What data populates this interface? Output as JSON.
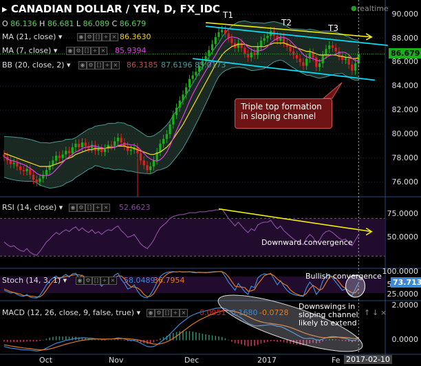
{
  "header": {
    "symbol_title": "CANADIAN DOLLAR / YEN, D, FX_IDC",
    "realtime": "realtime",
    "ohlc": {
      "o_label": "O",
      "o": "86.136",
      "h_label": "H",
      "h": "86.681",
      "l_label": "L",
      "l": "86.089",
      "c_label": "C",
      "c": "86.679"
    }
  },
  "indicators": {
    "ma21": {
      "label": "MA (21, close)",
      "value": "86.3630",
      "color": "#f0d020"
    },
    "ma7": {
      "label": "MA (7, close)",
      "value": "85.9394",
      "color": "#e040e0"
    },
    "bb": {
      "label": "BB (20, close, 2)",
      "v1": "86.3185",
      "v2": "87.6196",
      "v3": "85.0173"
    },
    "rsi": {
      "label": "RSI (14, close)",
      "value": "52.6623"
    },
    "stoch": {
      "label": "Stoch (14, 3, 1)",
      "k": "58.0489",
      "d": "36.7954"
    },
    "macd": {
      "label": "MACD (12, 26, close, 9, false, true)",
      "v1": "0.0951",
      "v2": "0.1680",
      "v3": "-0.0728"
    }
  },
  "annotations": {
    "t1": "T1",
    "t2": "T2",
    "t3": "T3",
    "callout_line1": "Triple top formation",
    "callout_line2": "in sloping channel",
    "rsi_note": "Downward convergence",
    "stoch_note": "Bullish convergence",
    "macd_note_1": "Downswings in",
    "macd_note_2": "sloping channel",
    "macd_note_3": "likely to extend"
  },
  "price_tags": {
    "last": "86.679",
    "stoch": "73.7133"
  },
  "colors": {
    "up": "#19b019",
    "down": "#e02020",
    "channel": "#00e0ff",
    "yellow": "#f0f000",
    "bb": "#4a9a98",
    "ma21": "#f0d020",
    "ma7": "#e040e0",
    "bg": "#000000"
  },
  "chart_data": {
    "type": "candlestick",
    "price_axis_ticks": [
      "90.000",
      "88.000",
      "86.000",
      "84.000",
      "82.000",
      "80.000",
      "78.000",
      "76.000"
    ],
    "rsi_axis_ticks": [
      "75.0000",
      "50.0000"
    ],
    "stoch_axis_ticks": [
      "100.0000",
      "50.0000",
      "25.0000"
    ],
    "macd_axis_ticks": [
      "2.0000",
      "0.0000"
    ],
    "x_ticks": [
      "Oct",
      "Nov",
      "Dec",
      "2017",
      "Fe",
      "2017-02-10"
    ],
    "price_ylim": [
      75,
      90.5
    ],
    "closes": [
      78.1,
      77.8,
      77.5,
      77.6,
      77.3,
      77.0,
      76.9,
      77.1,
      76.6,
      76.2,
      76.0,
      76.3,
      76.6,
      77.0,
      77.4,
      77.8,
      78.2,
      78.0,
      78.3,
      78.6,
      78.4,
      78.9,
      79.2,
      78.9,
      79.3,
      79.0,
      78.8,
      79.1,
      78.6,
      78.8,
      78.5,
      78.8,
      79.1,
      79.0,
      79.4,
      79.7,
      79.3,
      79.0,
      78.6,
      78.7,
      78.9,
      78.4,
      77.8,
      77.4,
      77.0,
      77.3,
      77.8,
      78.5,
      79.2,
      79.6,
      80.0,
      80.8,
      81.6,
      82.2,
      82.8,
      83.3,
      83.9,
      84.6,
      84.9,
      85.2,
      85.7,
      86.1,
      86.5,
      87.0,
      87.5,
      88.1,
      88.5,
      88.7,
      88.4,
      88.0,
      87.6,
      87.2,
      87.6,
      87.2,
      86.7,
      86.4,
      86.8,
      86.6,
      87.3,
      87.8,
      88.0,
      88.2,
      88.6,
      88.2,
      87.8,
      88.1,
      87.6,
      87.3,
      86.9,
      86.6,
      86.3,
      86.0,
      85.7,
      86.3,
      86.8,
      86.4,
      85.6,
      85.9,
      86.6,
      87.1,
      87.4,
      87.2,
      86.9,
      86.5,
      86.2,
      86.3,
      85.8,
      85.3,
      85.9,
      86.68
    ],
    "ma21": [
      78.4,
      78.3,
      78.2,
      78.1,
      78.0,
      77.9,
      77.8,
      77.7,
      77.6,
      77.5,
      77.4,
      77.3,
      77.3,
      77.3,
      77.3,
      77.4,
      77.5,
      77.6,
      77.7,
      77.9,
      78.0,
      78.1,
      78.3,
      78.4,
      78.5,
      78.6,
      78.7,
      78.7,
      78.8,
      78.8,
      78.8,
      78.8,
      78.9,
      78.9,
      78.9,
      79.0,
      79.0,
      79.0,
      78.9,
      78.9,
      78.8,
      78.7,
      78.6,
      78.5,
      78.4,
      78.3,
      78.3,
      78.4,
      78.5,
      78.7,
      78.9,
      79.2,
      79.6,
      80.0,
      80.4,
      80.8,
      81.3,
      81.8,
      82.3,
      82.8,
      83.3,
      83.8,
      84.3,
      84.8,
      85.3,
      85.8,
      86.2,
      86.6,
      86.9,
      87.1,
      87.3,
      87.4,
      87.5,
      87.5,
      87.5,
      87.4,
      87.3,
      87.3,
      87.3,
      87.3,
      87.3,
      87.4,
      87.5,
      87.6,
      87.6,
      87.6,
      87.6,
      87.5,
      87.4,
      87.3,
      87.2,
      87.1,
      87.0,
      86.9,
      86.9,
      86.8,
      86.7,
      86.6,
      86.6,
      86.6,
      86.6,
      86.6,
      86.6,
      86.5,
      86.5,
      86.4,
      86.4,
      86.3,
      86.3,
      86.36
    ],
    "rsi": [
      45,
      42,
      40,
      41,
      38,
      36,
      35,
      38,
      34,
      32,
      31,
      35,
      40,
      45,
      48,
      52,
      55,
      53,
      56,
      58,
      56,
      59,
      61,
      57,
      60,
      57,
      55,
      58,
      54,
      56,
      53,
      56,
      58,
      57,
      60,
      62,
      57,
      54,
      50,
      51,
      53,
      48,
      43,
      40,
      38,
      42,
      47,
      54,
      60,
      63,
      66,
      70,
      72,
      73,
      74,
      74,
      75,
      76,
      76,
      76,
      77,
      77,
      77,
      78,
      78,
      79,
      79,
      80,
      75,
      70,
      66,
      62,
      66,
      62,
      58,
      55,
      59,
      57,
      63,
      65,
      66,
      66,
      68,
      63,
      59,
      62,
      57,
      54,
      51,
      48,
      46,
      44,
      42,
      49,
      53,
      50,
      44,
      47,
      53,
      56,
      57,
      55,
      52,
      49,
      47,
      48,
      44,
      41,
      47,
      52.7
    ],
    "stoch_k": [
      30,
      25,
      20,
      22,
      15,
      10,
      8,
      15,
      5,
      3,
      2,
      12,
      30,
      50,
      65,
      75,
      82,
      70,
      80,
      88,
      78,
      90,
      92,
      75,
      85,
      70,
      60,
      72,
      50,
      58,
      45,
      62,
      75,
      70,
      85,
      92,
      70,
      55,
      35,
      40,
      50,
      28,
      12,
      5,
      3,
      15,
      35,
      60,
      80,
      90,
      95,
      97,
      98,
      97,
      98,
      96,
      97,
      98,
      95,
      94,
      96,
      95,
      94,
      96,
      97,
      98,
      98,
      97,
      80,
      60,
      45,
      30,
      55,
      40,
      25,
      15,
      45,
      40,
      75,
      85,
      90,
      88,
      92,
      70,
      50,
      65,
      45,
      30,
      20,
      15,
      12,
      10,
      8,
      40,
      60,
      45,
      15,
      30,
      65,
      80,
      88,
      75,
      60,
      45,
      30,
      35,
      18,
      10,
      35,
      58
    ],
    "stoch_d": [
      35,
      30,
      25,
      22,
      19,
      16,
      11,
      11,
      9,
      8,
      6,
      6,
      15,
      31,
      48,
      63,
      74,
      76,
      77,
      80,
      82,
      85,
      87,
      86,
      84,
      77,
      72,
      67,
      61,
      60,
      51,
      55,
      61,
      69,
      77,
      82,
      82,
      72,
      53,
      43,
      42,
      39,
      30,
      15,
      7,
      8,
      18,
      37,
      58,
      77,
      88,
      94,
      97,
      97,
      98,
      97,
      97,
      97,
      97,
      95,
      95,
      95,
      95,
      95,
      96,
      97,
      98,
      98,
      92,
      79,
      62,
      45,
      43,
      42,
      40,
      27,
      28,
      33,
      53,
      67,
      83,
      88,
      90,
      83,
      71,
      62,
      53,
      47,
      32,
      22,
      16,
      12,
      10,
      19,
      36,
      48,
      40,
      30,
      37,
      58,
      78,
      81,
      74,
      60,
      45,
      37,
      28,
      21,
      21,
      36.8
    ],
    "macd": [
      -0.4,
      -0.45,
      -0.5,
      -0.52,
      -0.55,
      -0.58,
      -0.6,
      -0.6,
      -0.62,
      -0.65,
      -0.67,
      -0.65,
      -0.6,
      -0.5,
      -0.4,
      -0.3,
      -0.2,
      -0.15,
      -0.1,
      -0.02,
      0.0,
      0.05,
      0.1,
      0.1,
      0.13,
      0.12,
      0.1,
      0.1,
      0.07,
      0.06,
      0.03,
      0.03,
      0.05,
      0.05,
      0.08,
      0.12,
      0.1,
      0.06,
      0.0,
      -0.03,
      -0.04,
      -0.1,
      -0.2,
      -0.3,
      -0.4,
      -0.42,
      -0.4,
      -0.3,
      -0.15,
      0.0,
      0.15,
      0.35,
      0.55,
      0.75,
      0.95,
      1.1,
      1.25,
      1.4,
      1.5,
      1.58,
      1.65,
      1.7,
      1.75,
      1.8,
      1.85,
      1.9,
      1.92,
      1.93,
      1.88,
      1.78,
      1.65,
      1.5,
      1.42,
      1.3,
      1.15,
      1.0,
      0.92,
      0.85,
      0.84,
      0.86,
      0.88,
      0.9,
      0.92,
      0.88,
      0.82,
      0.8,
      0.72,
      0.62,
      0.52,
      0.42,
      0.3,
      0.2,
      0.1,
      0.08,
      0.1,
      0.08,
      0.0,
      -0.02,
      0.05,
      0.12,
      0.18,
      0.2,
      0.19,
      0.15,
      0.1,
      0.08,
      0.02,
      -0.05,
      -0.02,
      0.095
    ],
    "macd_signal": [
      -0.3,
      -0.33,
      -0.37,
      -0.4,
      -0.43,
      -0.46,
      -0.49,
      -0.51,
      -0.53,
      -0.56,
      -0.58,
      -0.6,
      -0.6,
      -0.58,
      -0.55,
      -0.5,
      -0.44,
      -0.38,
      -0.32,
      -0.26,
      -0.21,
      -0.16,
      -0.11,
      -0.07,
      -0.03,
      0.0,
      0.02,
      0.04,
      0.05,
      0.05,
      0.05,
      0.05,
      0.05,
      0.05,
      0.06,
      0.07,
      0.08,
      0.08,
      0.07,
      0.05,
      0.03,
      0.0,
      -0.04,
      -0.09,
      -0.15,
      -0.21,
      -0.25,
      -0.26,
      -0.24,
      -0.19,
      -0.12,
      -0.03,
      0.09,
      0.22,
      0.37,
      0.52,
      0.66,
      0.81,
      0.95,
      1.07,
      1.19,
      1.29,
      1.38,
      1.47,
      1.55,
      1.63,
      1.69,
      1.74,
      1.77,
      1.77,
      1.75,
      1.7,
      1.65,
      1.58,
      1.5,
      1.41,
      1.31,
      1.22,
      1.15,
      1.09,
      1.04,
      1.01,
      0.99,
      0.96,
      0.93,
      0.9,
      0.86,
      0.81,
      0.75,
      0.68,
      0.6,
      0.52,
      0.44,
      0.37,
      0.31,
      0.26,
      0.21,
      0.16,
      0.14,
      0.13,
      0.14,
      0.15,
      0.16,
      0.16,
      0.15,
      0.14,
      0.12,
      0.09,
      0.07,
      0.168
    ]
  }
}
